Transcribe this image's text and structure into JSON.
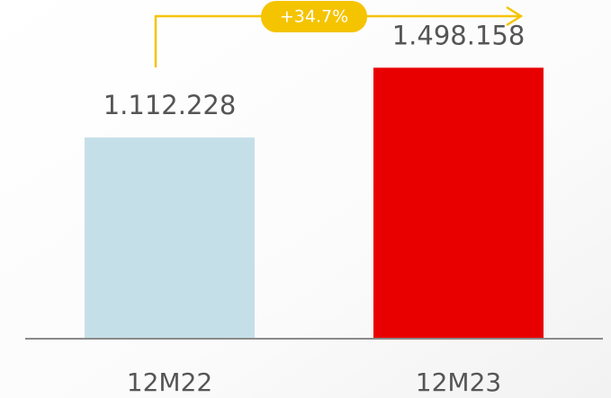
{
  "chart_data": {
    "type": "bar",
    "categories": [
      "12M22",
      "12M23"
    ],
    "values": [
      1112228,
      1498158
    ],
    "value_labels": [
      "1.112.228",
      "1.498.158"
    ],
    "colors": [
      "#c5dfe8",
      "#e80000"
    ],
    "annotation": "+34.7%",
    "ylim": [
      0,
      1500000
    ]
  }
}
